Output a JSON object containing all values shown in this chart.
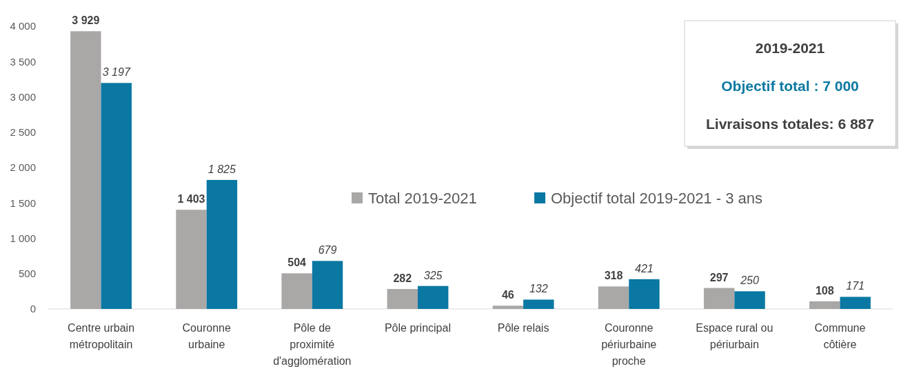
{
  "chart_data": {
    "type": "bar",
    "categories": [
      "Centre urbain\nmétropolitain",
      "Couronne\nurbaine",
      "Pôle de\nproximité\nd'agglomération",
      "Pôle principal",
      "Pôle relais",
      "Couronne\npériurbaine\nproche",
      "Espace rural ou\npériurbain",
      "Commune\ncôtière"
    ],
    "series": [
      {
        "name": "Total 2019-2021",
        "color": "#aaa7a7",
        "values": [
          3929,
          1403,
          504,
          282,
          46,
          318,
          297,
          108
        ],
        "value_labels": [
          "3 929",
          "1 403",
          "504",
          "282",
          "46",
          "318",
          "297",
          "108"
        ]
      },
      {
        "name": "Objectif total 2019-2021 - 3 ans",
        "color": "#0a78a2",
        "values": [
          3197,
          1825,
          679,
          325,
          132,
          421,
          250,
          171
        ],
        "value_labels": [
          "3 197",
          "1 825",
          "679",
          "325",
          "132",
          "421",
          "250",
          "171"
        ]
      }
    ],
    "ylim": [
      0,
      4000
    ],
    "yticks": [
      0,
      {
        "value": 500,
        "label": "500"
      },
      {
        "value": 1000,
        "label": "1 000"
      },
      {
        "value": 1500,
        "label": "1 500"
      },
      {
        "value": 2000,
        "label": "2 000"
      },
      {
        "value": 2500,
        "label": "2 500"
      },
      {
        "value": 3000,
        "label": "3 000"
      },
      {
        "value": 3500,
        "label": "3 500"
      },
      {
        "value": 4000,
        "label": "4 000"
      }
    ],
    "grid": false,
    "legend": "right",
    "annotations": [
      "2019-2021",
      "Objectif total : 7 000",
      "Livraisons totales: 6 887"
    ]
  }
}
